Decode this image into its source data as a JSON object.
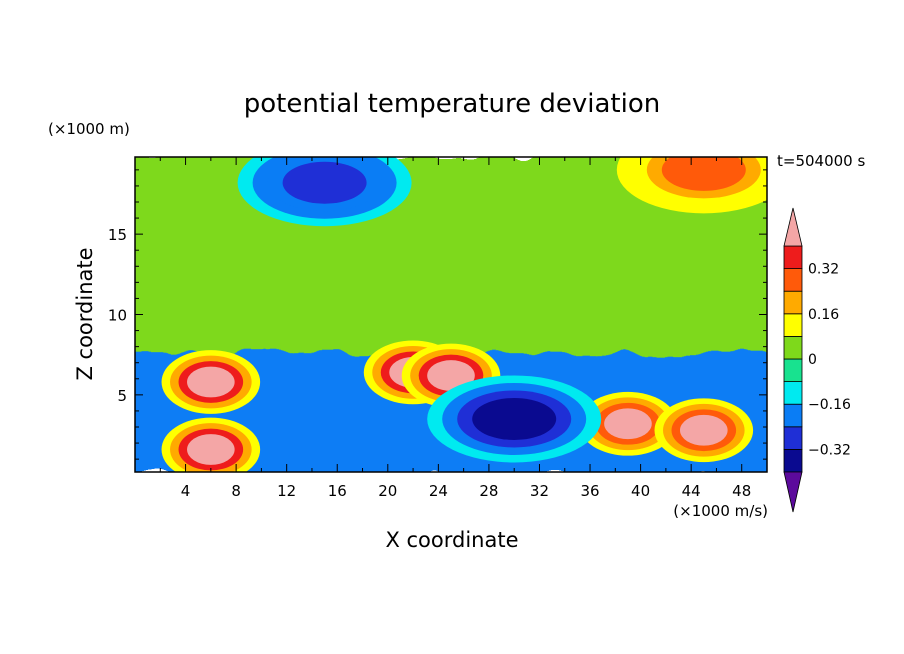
{
  "chart_data": {
    "type": "heatmap",
    "title": "potential temperature deviation",
    "xlabel": "X coordinate",
    "ylabel": "Z coordinate",
    "x_units": "(×1000 m/s)",
    "y_units": "(×1000 m)",
    "time_label": "t=504000 s",
    "xlim": [
      0,
      50
    ],
    "ylim": [
      0.2,
      19.8
    ],
    "x_ticks": [
      4,
      8,
      12,
      16,
      20,
      24,
      28,
      32,
      36,
      40,
      44,
      48
    ],
    "y_ticks": [
      5,
      10,
      15
    ],
    "colorbar": {
      "levels": [
        -0.4,
        -0.32,
        -0.24,
        -0.16,
        -0.08,
        0,
        0.08,
        0.16,
        0.24,
        0.32,
        0.4
      ],
      "labeled_levels": [
        0.32,
        0.16,
        0,
        -0.16,
        -0.32
      ],
      "colors": [
        "#5c0a9c",
        "#0a0a90",
        "#1f2fd6",
        "#0a7df5",
        "#00eaf0",
        "#18e28f",
        "#7ed91b",
        "#ffff00",
        "#ffaa00",
        "#ff5a0a",
        "#ee1c1c",
        "#f4a6a6"
      ],
      "extend": "both"
    },
    "fields": {
      "background_band_mean": [
        {
          "z_range": [
            17,
            19.8
          ],
          "value": 0.05
        },
        {
          "z_range": [
            7.5,
            17
          ],
          "value": 0.03
        },
        {
          "z_range": [
            0.2,
            7.5
          ],
          "value": -0.2
        }
      ],
      "features": [
        {
          "name": "upper-left cold pool",
          "x": 15,
          "z": 18.2,
          "value": -0.3
        },
        {
          "name": "upper-right warm cell",
          "x": 45,
          "z": 19,
          "value": 0.26
        },
        {
          "name": "lower-left warm lens",
          "x": 6,
          "z": 1.6,
          "value": 0.42
        },
        {
          "name": "warm plume",
          "x": 6,
          "z": 5.8,
          "value": 0.42
        },
        {
          "name": "warm plume",
          "x": 22,
          "z": 6.4,
          "value": 0.42
        },
        {
          "name": "warm plume",
          "x": 25,
          "z": 6.2,
          "value": 0.42
        },
        {
          "name": "warm filament",
          "x": 39,
          "z": 3.2,
          "value": 0.4
        },
        {
          "name": "warm filament",
          "x": 45,
          "z": 2.8,
          "value": 0.4
        },
        {
          "name": "cold band",
          "x": 30,
          "z": 3.5,
          "value": -0.35
        }
      ]
    }
  }
}
